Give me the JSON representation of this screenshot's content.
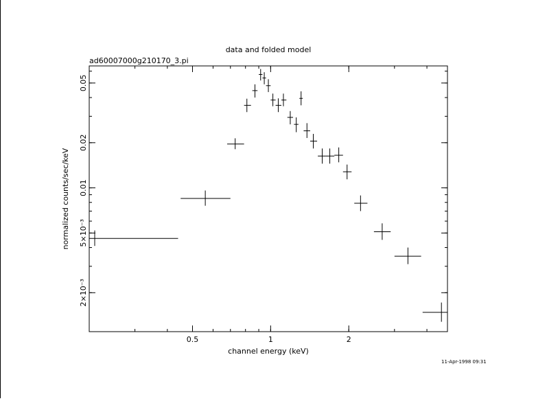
{
  "chart_data": {
    "type": "scatter",
    "title": "data and folded model",
    "subtitle": "ad60007000g210170_3.pi",
    "xlabel": "channel energy (keV)",
    "ylabel": "normalized counts/sec/keV",
    "timestamp": "11-Apr-1998 09:31",
    "x_scale": "log",
    "y_scale": "log",
    "xlim": [
      0.2,
      4.8
    ],
    "ylim": [
      0.0011,
      0.065
    ],
    "x_ticks": [
      {
        "value": 0.5,
        "label": "0.5"
      },
      {
        "value": 1,
        "label": "1"
      },
      {
        "value": 2,
        "label": "2"
      }
    ],
    "y_ticks": [
      {
        "value": 0.002,
        "label": "2×10⁻³"
      },
      {
        "value": 0.005,
        "label": "5×10⁻³"
      },
      {
        "value": 0.01,
        "label": "0.01"
      },
      {
        "value": 0.02,
        "label": "0.02"
      },
      {
        "value": 0.05,
        "label": "0.05"
      }
    ],
    "series": [
      {
        "points": [
          {
            "x": 0.21,
            "xlo": 0.2,
            "xhi": 0.44,
            "y": 0.0046,
            "ylo": 0.0041,
            "yhi": 0.0052
          },
          {
            "x": 0.56,
            "xlo": 0.45,
            "xhi": 0.7,
            "y": 0.0085,
            "ylo": 0.0076,
            "yhi": 0.0096
          },
          {
            "x": 0.73,
            "xlo": 0.68,
            "xhi": 0.79,
            "y": 0.0196,
            "ylo": 0.0181,
            "yhi": 0.0214
          },
          {
            "x": 0.81,
            "xlo": 0.79,
            "xhi": 0.84,
            "y": 0.0355,
            "ylo": 0.032,
            "yhi": 0.0393
          },
          {
            "x": 0.87,
            "xlo": 0.85,
            "xhi": 0.89,
            "y": 0.0445,
            "ylo": 0.04,
            "yhi": 0.049
          },
          {
            "x": 0.915,
            "xlo": 0.9,
            "xhi": 0.93,
            "y": 0.057,
            "ylo": 0.052,
            "yhi": 0.062
          },
          {
            "x": 0.945,
            "xlo": 0.93,
            "xhi": 0.96,
            "y": 0.054,
            "ylo": 0.049,
            "yhi": 0.059
          },
          {
            "x": 0.98,
            "xlo": 0.96,
            "xhi": 1.0,
            "y": 0.048,
            "ylo": 0.0435,
            "yhi": 0.053
          },
          {
            "x": 1.02,
            "xlo": 1.0,
            "xhi": 1.045,
            "y": 0.0385,
            "ylo": 0.035,
            "yhi": 0.0425
          },
          {
            "x": 1.07,
            "xlo": 1.045,
            "xhi": 1.1,
            "y": 0.0355,
            "ylo": 0.032,
            "yhi": 0.0395
          },
          {
            "x": 1.12,
            "xlo": 1.1,
            "xhi": 1.15,
            "y": 0.0385,
            "ylo": 0.035,
            "yhi": 0.0425
          },
          {
            "x": 1.19,
            "xlo": 1.16,
            "xhi": 1.22,
            "y": 0.0295,
            "ylo": 0.0265,
            "yhi": 0.0325
          },
          {
            "x": 1.255,
            "xlo": 1.23,
            "xhi": 1.28,
            "y": 0.0265,
            "ylo": 0.0235,
            "yhi": 0.0295
          },
          {
            "x": 1.31,
            "xlo": 1.29,
            "xhi": 1.33,
            "y": 0.0395,
            "ylo": 0.0355,
            "yhi": 0.044
          },
          {
            "x": 1.38,
            "xlo": 1.34,
            "xhi": 1.42,
            "y": 0.024,
            "ylo": 0.0215,
            "yhi": 0.027
          },
          {
            "x": 1.46,
            "xlo": 1.42,
            "xhi": 1.51,
            "y": 0.0205,
            "ylo": 0.0183,
            "yhi": 0.0229
          },
          {
            "x": 1.58,
            "xlo": 1.52,
            "xhi": 1.63,
            "y": 0.0163,
            "ylo": 0.0145,
            "yhi": 0.0183
          },
          {
            "x": 1.69,
            "xlo": 1.63,
            "xhi": 1.76,
            "y": 0.0163,
            "ylo": 0.0145,
            "yhi": 0.0183
          },
          {
            "x": 1.83,
            "xlo": 1.76,
            "xhi": 1.9,
            "y": 0.0165,
            "ylo": 0.0148,
            "yhi": 0.0186
          },
          {
            "x": 1.97,
            "xlo": 1.9,
            "xhi": 2.05,
            "y": 0.0128,
            "ylo": 0.0114,
            "yhi": 0.0143
          },
          {
            "x": 2.22,
            "xlo": 2.1,
            "xhi": 2.36,
            "y": 0.0079,
            "ylo": 0.007,
            "yhi": 0.0089
          },
          {
            "x": 2.69,
            "xlo": 2.5,
            "xhi": 2.9,
            "y": 0.0051,
            "ylo": 0.0045,
            "yhi": 0.0058
          },
          {
            "x": 3.38,
            "xlo": 3.0,
            "xhi": 3.8,
            "y": 0.0035,
            "ylo": 0.0031,
            "yhi": 0.004
          },
          {
            "x": 4.55,
            "xlo": 3.85,
            "xhi": 4.8,
            "y": 0.00148,
            "ylo": 0.00128,
            "yhi": 0.00172
          }
        ]
      }
    ]
  }
}
